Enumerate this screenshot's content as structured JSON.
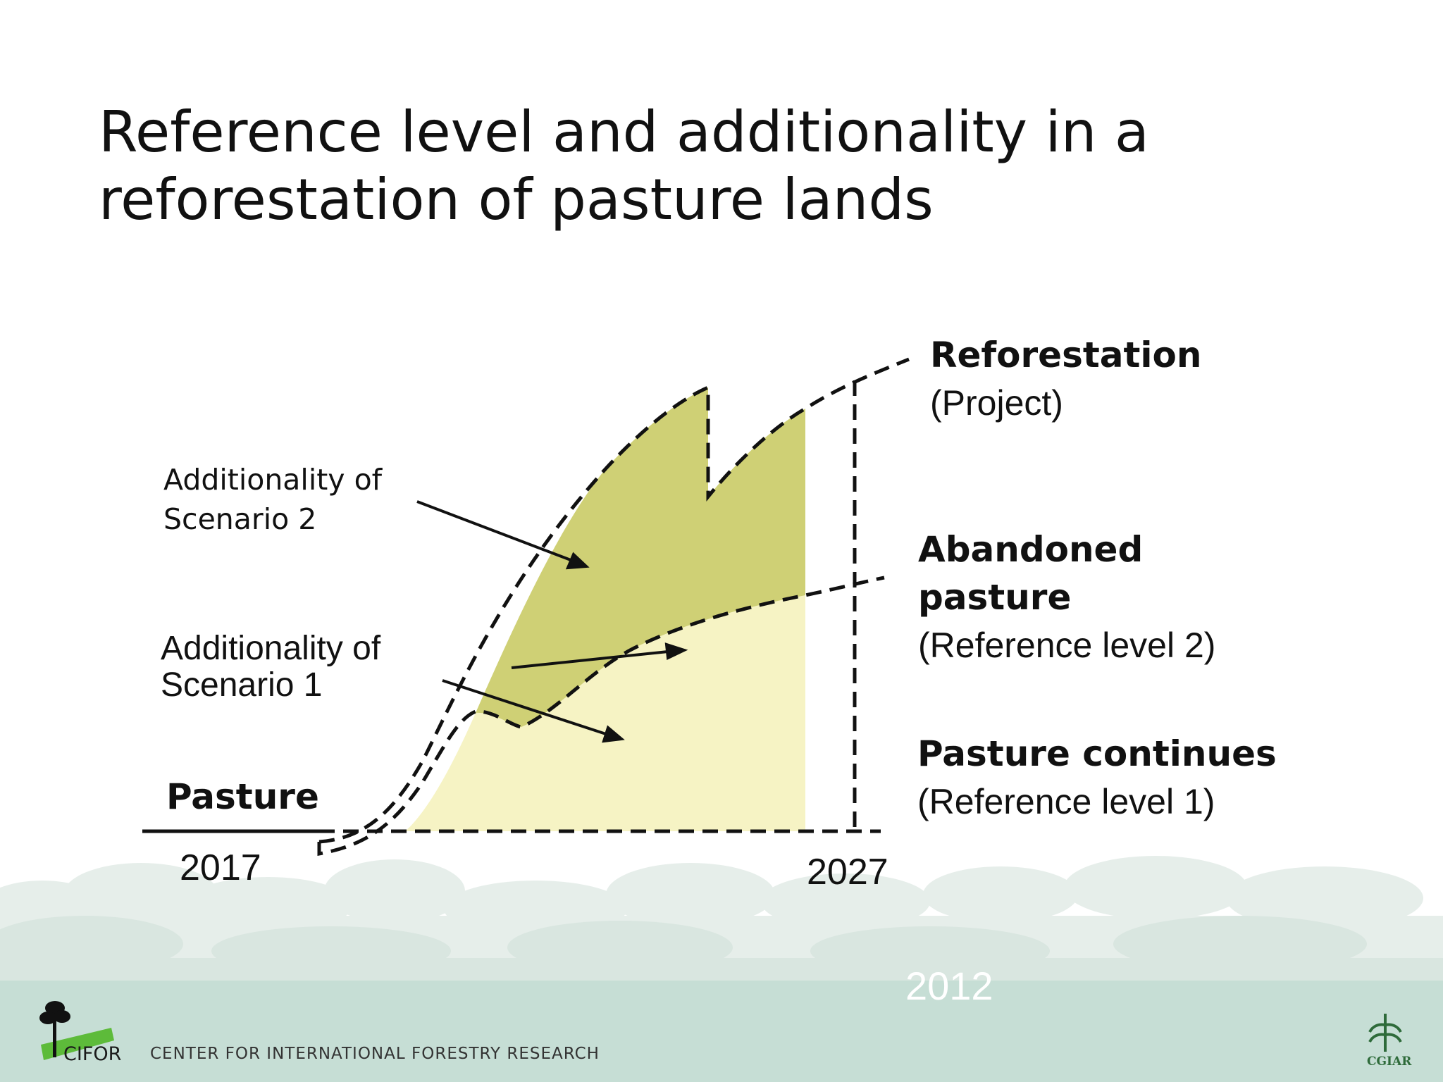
{
  "title": {
    "line1": "Reference level and additionality in a",
    "line2": "reforestation of pasture lands"
  },
  "diagram": {
    "pasture_label": "Pasture",
    "start_year": "2017",
    "end_year": "2027",
    "reforestation": {
      "name": "Reforestation",
      "note": "(Project)"
    },
    "abandoned": {
      "name_line1": "Abandoned",
      "name_line2": "pasture",
      "note": "(Reference level 2)"
    },
    "continues": {
      "name": "Pasture continues",
      "note": "(Reference level 1)"
    },
    "additionality2": {
      "line1": "Additionality of",
      "line2": "Scenario 2"
    },
    "additionality1": {
      "line1": "Additionality of",
      "line2": "Scenario 1"
    }
  },
  "colors": {
    "scenario2_fill": "#cfd075",
    "scenario1_fill": "#f6f3c4",
    "footer_band": "#c6ded5",
    "tree_silhouette": "#e3ece8"
  },
  "footer": {
    "year": "2012",
    "org_name": "CENTER FOR INTERNATIONAL FORESTRY RESEARCH",
    "cifor_logo_text": "CIFOR",
    "cgiar_logo_text": "CGIAR"
  }
}
